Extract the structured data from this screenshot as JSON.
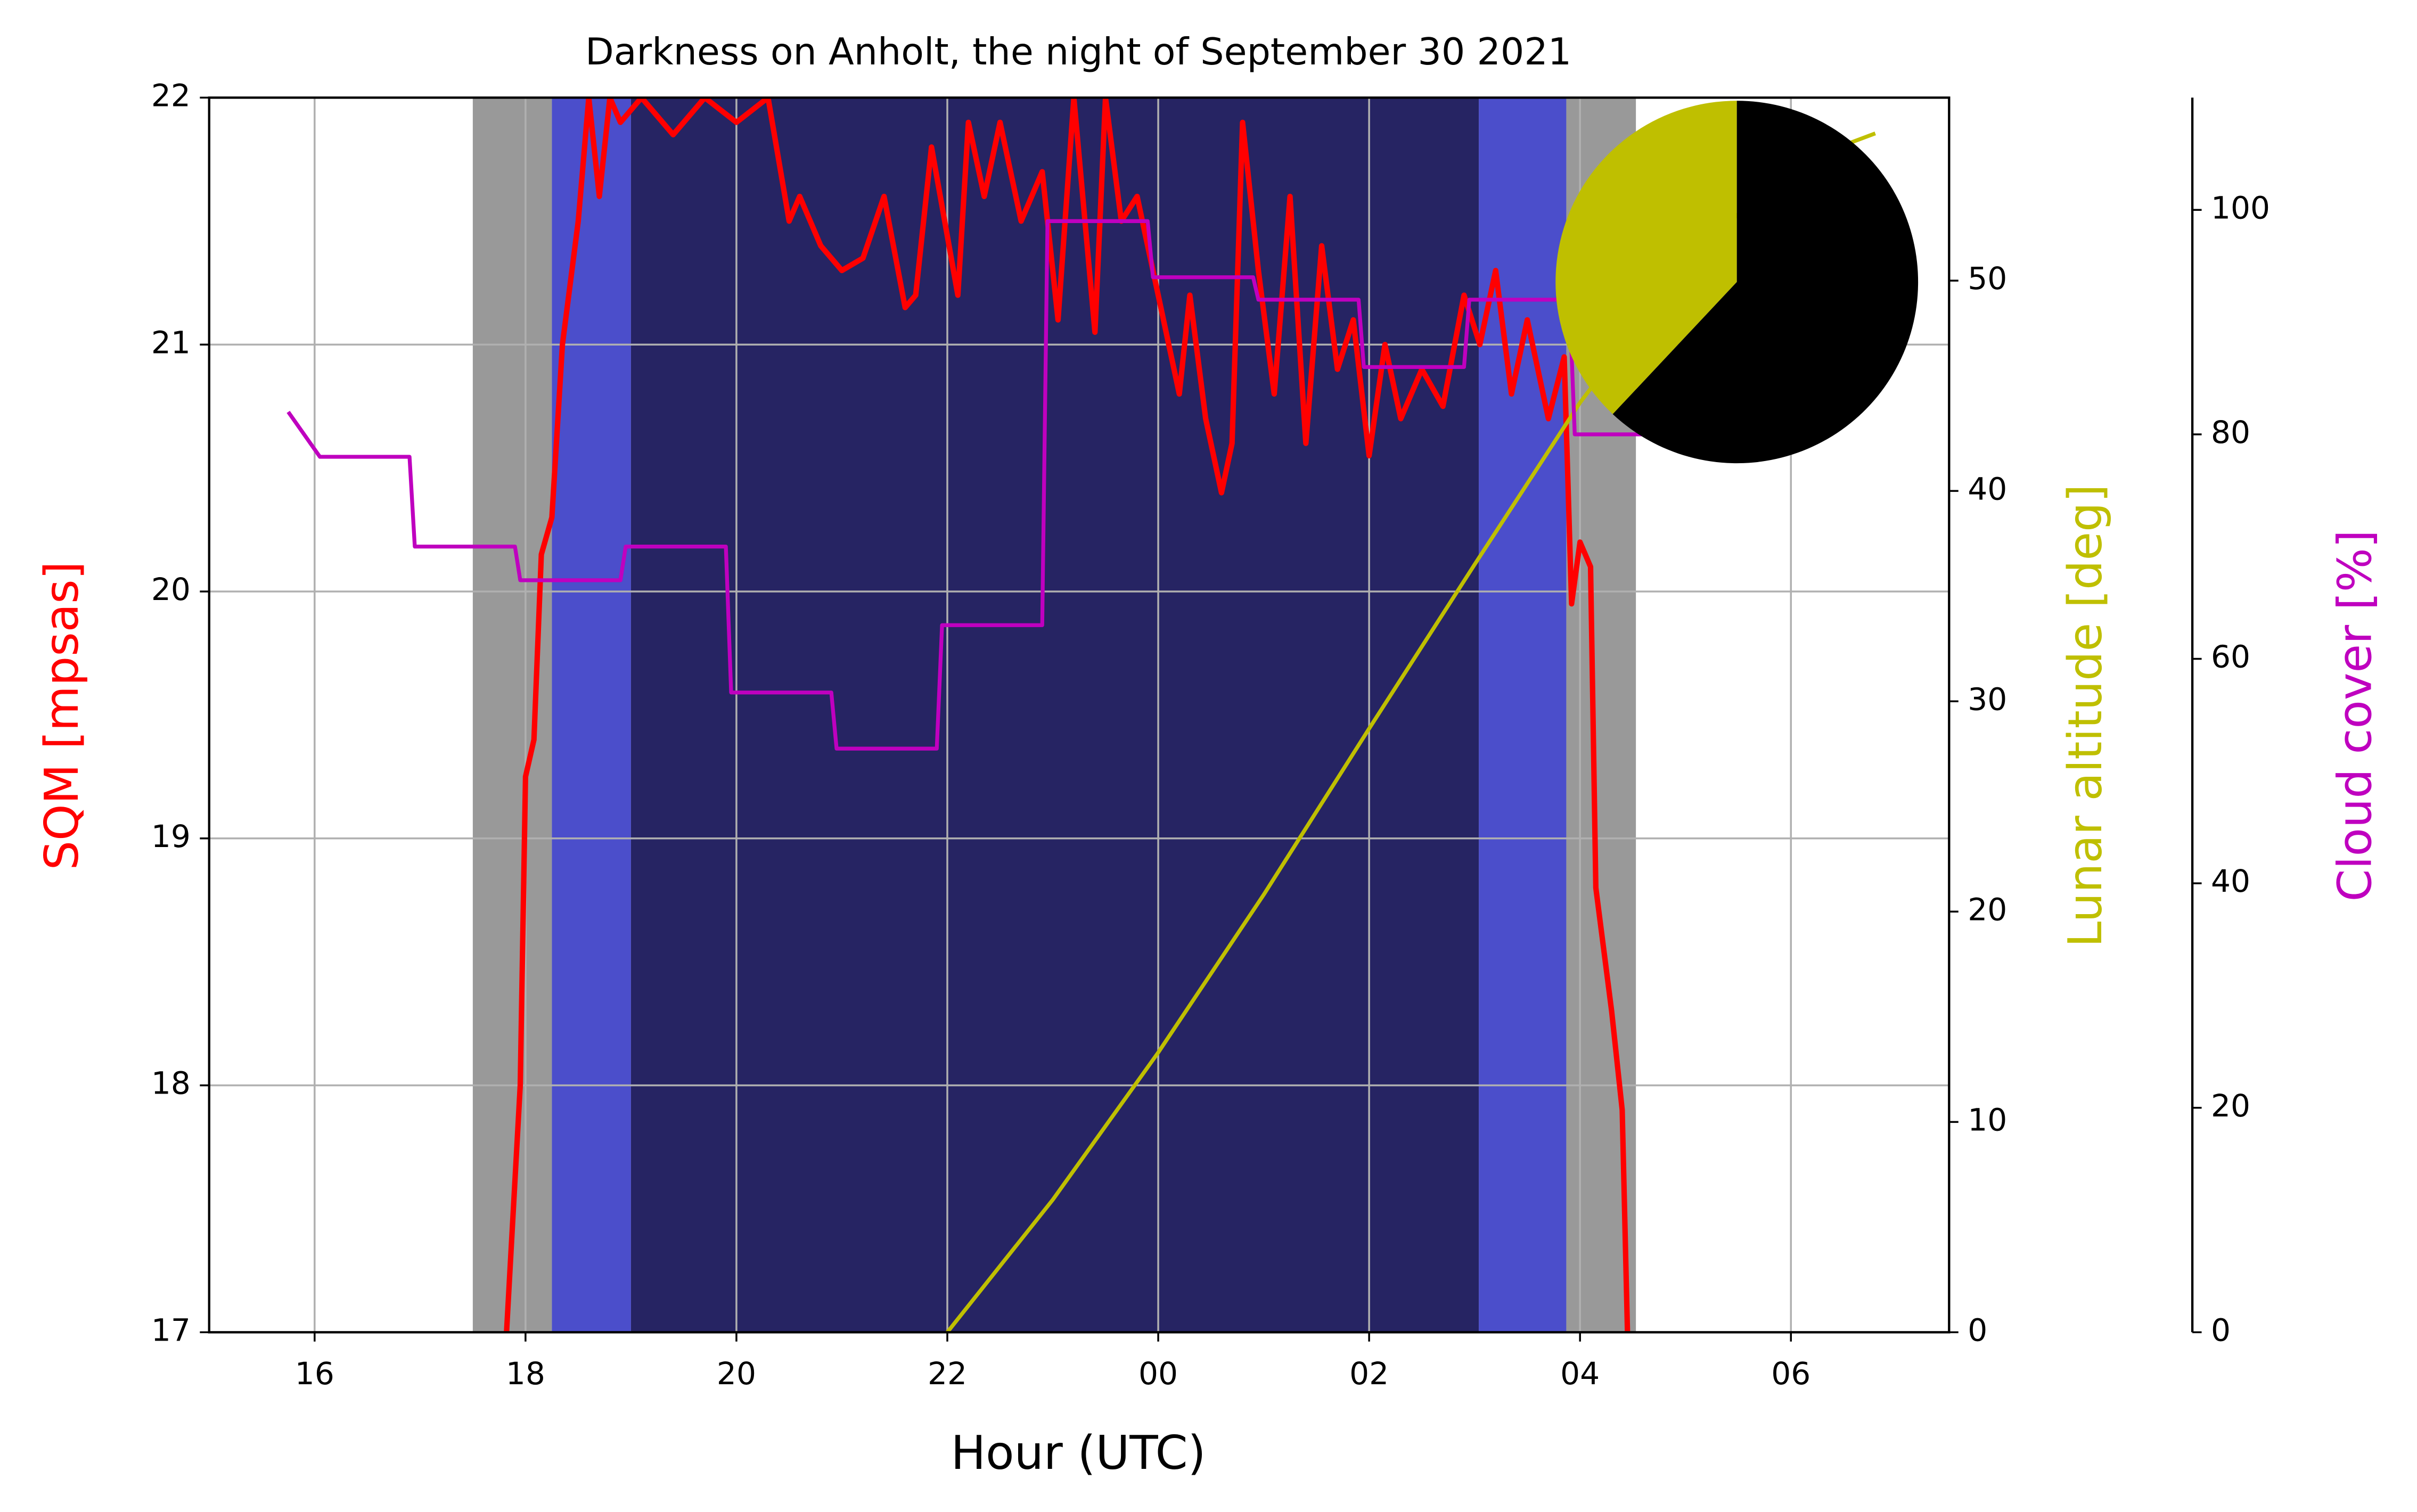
{
  "chart_data": [
    {
      "type": "line",
      "title": "Darkness on Anholt, the night of September 30 2021",
      "xlabel": "Hour (UTC)",
      "ylabel": "SQM [mpsas]",
      "y2label": "Lunar altitude [deg]",
      "y3label": "Cloud cover [%]",
      "xlim": [
        15,
        31.5
      ],
      "xticks": [
        16,
        18,
        20,
        22,
        {
          "value": 24,
          "label": "00"
        },
        {
          "value": 26,
          "label": "02"
        },
        {
          "value": 28,
          "label": "04"
        },
        {
          "value": 30,
          "label": "06"
        }
      ],
      "ylim": [
        17,
        22
      ],
      "yticks": [
        17,
        18,
        19,
        20,
        21,
        22
      ],
      "y2lim": [
        0,
        58.7
      ],
      "y2ticks": [
        0,
        10,
        20,
        30,
        40,
        50
      ],
      "y3lim": [
        0,
        110
      ],
      "y3ticks": [
        0,
        20,
        40,
        60,
        80,
        100
      ],
      "grid": true,
      "bands": [
        {
          "start": 17.5,
          "end": 18.25,
          "color": "#999999"
        },
        {
          "start": 18.25,
          "end": 19.0,
          "color": "#4b4ecb"
        },
        {
          "start": 19.0,
          "end": 27.04,
          "color": "#262463"
        },
        {
          "start": 27.04,
          "end": 27.87,
          "color": "#4b4ecb"
        },
        {
          "start": 27.87,
          "end": 28.53,
          "color": "#999999"
        }
      ],
      "series": [
        {
          "color": "#ff0000",
          "axis": "y",
          "x": [
            17.82,
            17.95,
            18.0,
            18.08,
            18.15,
            18.25,
            18.35,
            18.5,
            18.6,
            18.7,
            18.8,
            18.9,
            19.1,
            19.4,
            19.7,
            20.0,
            20.3,
            20.5,
            20.6,
            20.8,
            21.0,
            21.2,
            21.4,
            21.6,
            21.7,
            21.85,
            22.1,
            22.2,
            22.35,
            22.5,
            22.7,
            22.9,
            23.05,
            23.2,
            23.4,
            23.5,
            23.65,
            23.8,
            24.0,
            24.2,
            24.3,
            24.45,
            24.6,
            24.7,
            24.8,
            24.95,
            25.1,
            25.25,
            25.4,
            25.55,
            25.7,
            25.85,
            26.0,
            26.15,
            26.3,
            26.5,
            26.7,
            26.9,
            27.05,
            27.2,
            27.35,
            27.5,
            27.7,
            27.85,
            27.92,
            28.0,
            28.1,
            28.15,
            28.3,
            28.4,
            28.45
          ],
          "values": [
            17.0,
            18.0,
            19.25,
            19.4,
            20.15,
            20.3,
            21.0,
            21.5,
            22.0,
            21.6,
            22.0,
            21.9,
            22.0,
            21.85,
            22.0,
            21.9,
            22.0,
            21.5,
            21.6,
            21.4,
            21.3,
            21.35,
            21.6,
            21.15,
            21.2,
            21.8,
            21.2,
            21.9,
            21.6,
            21.9,
            21.5,
            21.7,
            21.1,
            22.0,
            21.05,
            22.0,
            21.5,
            21.6,
            21.2,
            20.8,
            21.2,
            20.7,
            20.4,
            20.6,
            21.9,
            21.3,
            20.8,
            21.6,
            20.6,
            21.4,
            20.9,
            21.1,
            20.55,
            21.0,
            20.7,
            20.9,
            20.75,
            21.2,
            21.0,
            21.3,
            20.8,
            21.1,
            20.7,
            20.95,
            19.95,
            20.2,
            20.1,
            18.8,
            18.3,
            17.9,
            17.0
          ]
        },
        {
          "color": "#bfbf00",
          "axis": "y2",
          "x": [
            22,
            23,
            24,
            25,
            26,
            27,
            28,
            29,
            30,
            30.8
          ],
          "values": [
            0,
            6.3,
            13.3,
            20.8,
            28.7,
            36.5,
            44.2,
            50.8,
            55.5,
            57.0
          ]
        },
        {
          "color": "#bf00bf",
          "axis": "y3",
          "x": [
            15.75,
            16.05,
            16.9,
            16.95,
            17.9,
            17.95,
            18.9,
            18.95,
            19.9,
            19.95,
            20.9,
            20.95,
            21.9,
            21.95,
            22.9,
            22.95,
            23.9,
            23.95,
            24.9,
            24.95,
            25.9,
            25.95,
            26.9,
            26.95,
            27.9,
            27.95,
            28.7
          ],
          "values": [
            82,
            78,
            78,
            70,
            70,
            67,
            67,
            70,
            70,
            57,
            57,
            52,
            52,
            63,
            63,
            99,
            99,
            94,
            94,
            92,
            92,
            86,
            86,
            92,
            92,
            80,
            80
          ]
        }
      ]
    },
    {
      "type": "pie",
      "values": [
        38,
        62
      ],
      "colors": [
        "#bfbf00",
        "#000000"
      ]
    }
  ]
}
